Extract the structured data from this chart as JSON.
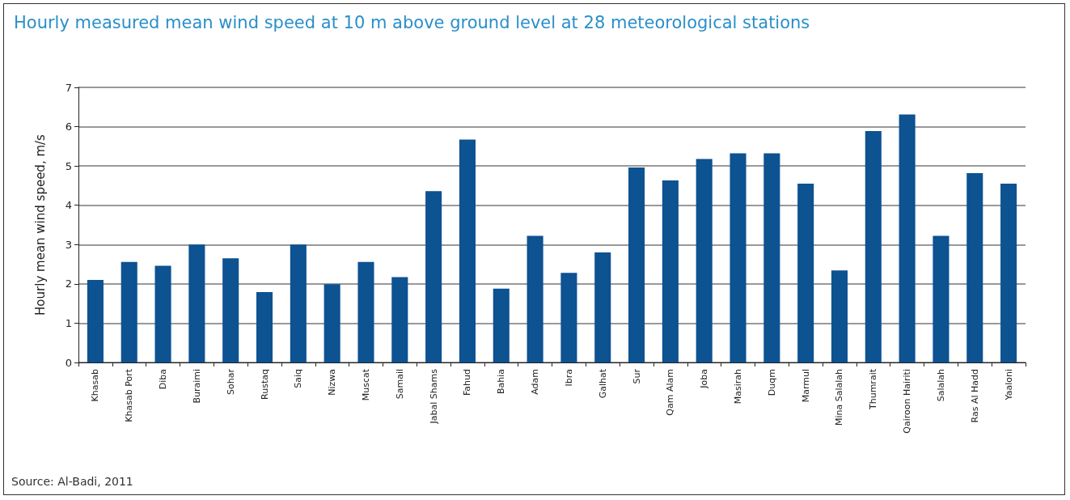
{
  "chart_data": {
    "type": "bar",
    "title": "Hourly measured mean wind speed at 10 m above ground level at 28 meteorological stations",
    "ylabel": "Hourly mean wind speed, m/s",
    "categories": [
      "Khasab",
      "Khasab Port",
      "Diba",
      "Buraimi",
      "Sohar",
      "Rustaq",
      "Saiq",
      "Nizwa",
      "Muscat",
      "Samail",
      "Jabal Shams",
      "Fahud",
      "Bahia",
      "Adam",
      "Ibra",
      "Galhat",
      "Sur",
      "Qam Alam",
      "Joba",
      "Masirah",
      "Duqm",
      "Marmul",
      "Mina Salalah",
      "Thumrait",
      "Qairoon Hairiti",
      "Salalah",
      "Ras Al Hadd",
      "Yaaloni"
    ],
    "values": [
      2.1,
      2.56,
      2.46,
      3.0,
      2.65,
      1.79,
      3.0,
      1.99,
      2.56,
      2.17,
      4.36,
      5.67,
      1.88,
      3.22,
      2.28,
      2.8,
      4.96,
      4.63,
      5.18,
      5.32,
      5.32,
      4.55,
      2.34,
      5.89,
      6.31,
      3.22,
      4.82,
      4.55
    ],
    "color": "#0d5291",
    "ylim": [
      0,
      7
    ],
    "yticks": [
      0,
      1,
      2,
      3,
      4,
      5,
      6,
      7
    ],
    "grid": "y",
    "annotations": [
      "Source: Al-Badi, 2011"
    ]
  }
}
